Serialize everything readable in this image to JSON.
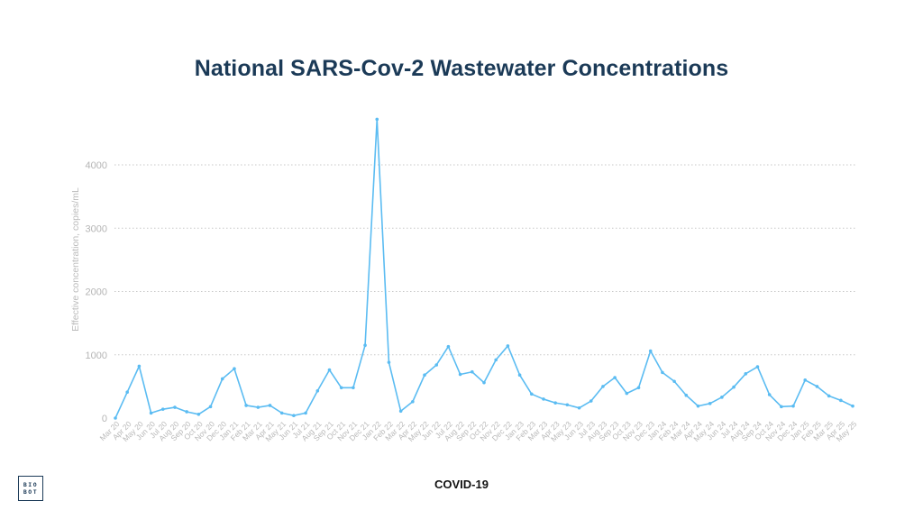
{
  "title": "National SARS-Cov-2 Wastewater Concentrations",
  "logo": {
    "line1": "BIO",
    "line2": "BOT"
  },
  "series_label": "COVID-19",
  "colors": {
    "line": "#5bbcf2",
    "title": "#1b3a57",
    "grid": "#c8c8c8",
    "ticks": "#b5b5b5"
  },
  "chart_data": {
    "type": "line",
    "title": "National SARS-Cov-2 Wastewater Concentrations",
    "xlabel": "COVID-19",
    "ylabel": "Effective concentration, copies/mL",
    "ylim": [
      0,
      4000
    ],
    "yticks": [
      0,
      1000,
      2000,
      3000,
      4000
    ],
    "grid": "horizontal dotted",
    "legend": "none",
    "xtick_labels": [
      "Mar 20",
      "Apr 20",
      "May 20",
      "Jun 20",
      "Jul 20",
      "Aug 20",
      "Sep 20",
      "Oct 20",
      "Nov 20",
      "Dec 20",
      "Jan 21",
      "Feb 21",
      "Mar 21",
      "Apr 21",
      "May 21",
      "Jun 21",
      "Jul 21",
      "Aug 21",
      "Sep 21",
      "Oct 21",
      "Nov 21",
      "Dec 21",
      "Jan 22",
      "Feb 22",
      "Mar 22",
      "Apr 22",
      "May 22",
      "Jun 22",
      "Jul 22",
      "Aug 22",
      "Sep 22",
      "Oct 22",
      "Nov 22",
      "Dec 22",
      "Jan 23",
      "Feb 23",
      "Mar 23",
      "Apr 23",
      "May 23",
      "Jun 23",
      "Jul 23",
      "Aug 23",
      "Sep 23",
      "Oct 23",
      "Nov 23",
      "Dec 23",
      "Jan 24",
      "Feb 24",
      "Mar 24",
      "Apr 24",
      "May 24",
      "Jun 24",
      "Jul 24",
      "Aug 24",
      "Sep 24",
      "Oct 24",
      "Nov 24",
      "Dec 24",
      "Jan 25",
      "Feb 25",
      "Mar 25",
      "Apr 25",
      "May 25"
    ],
    "series": [
      {
        "x": [
          "Mar 20",
          "Apr 20",
          "May 20",
          "Jun 20",
          "Jul 20",
          "Aug 20",
          "Sep 20",
          "Oct 20",
          "Nov 20",
          "Dec 20",
          "Jan 21",
          "Feb 21",
          "Mar 21",
          "Apr 21",
          "May 21",
          "Jun 21",
          "Jul 21",
          "Aug 21",
          "Sep 21",
          "Oct 21",
          "Nov 21",
          "Dec 21",
          "Jan 22",
          "Feb 22",
          "Mar 22",
          "Apr 22",
          "May 22",
          "Jun 22",
          "Jul 22",
          "Aug 22",
          "Sep 22",
          "Oct 22",
          "Nov 22",
          "Dec 22",
          "Jan 23",
          "Feb 23",
          "Mar 23",
          "Apr 23",
          "May 23",
          "Jun 23",
          "Jul 23",
          "Aug 23",
          "Sep 23",
          "Oct 23",
          "Nov 23",
          "Dec 23",
          "Jan 24",
          "Feb 24",
          "Mar 24",
          "Apr 24",
          "May 24",
          "Jun 24",
          "Jul 24",
          "Aug 24",
          "Sep 24",
          "Oct 24",
          "Nov 24",
          "Dec 24",
          "Jan 25",
          "Feb 25",
          "Mar 25",
          "Apr 25",
          "May 25"
        ],
        "values": [
          0,
          410,
          820,
          80,
          140,
          170,
          100,
          60,
          180,
          620,
          780,
          200,
          170,
          200,
          80,
          40,
          80,
          430,
          760,
          480,
          480,
          1150,
          4720,
          880,
          110,
          260,
          680,
          840,
          1130,
          690,
          730,
          560,
          920,
          1140,
          680,
          380,
          300,
          240,
          210,
          160,
          270,
          500,
          640,
          390,
          480,
          1060,
          720,
          580,
          360,
          190,
          230,
          330,
          490,
          700,
          810,
          370,
          180,
          190,
          600,
          500,
          350,
          280,
          190
        ]
      }
    ]
  }
}
